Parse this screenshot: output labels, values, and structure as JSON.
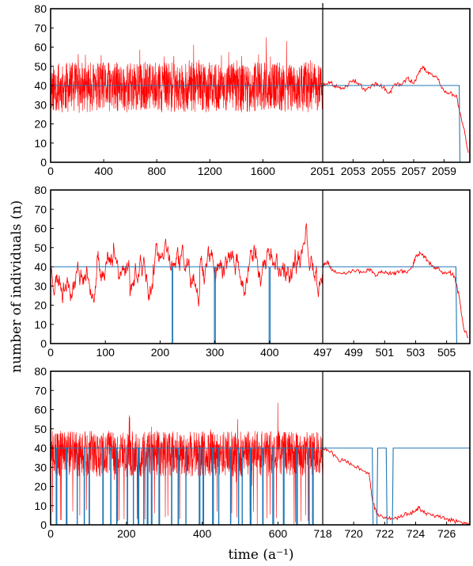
{
  "chart_data": {
    "type": "line",
    "ylabel": "number of individuals (n)",
    "xlabel": "time (a⁻¹)",
    "y_ticks": [
      0,
      10,
      20,
      30,
      40,
      50,
      60,
      70,
      80
    ],
    "ylim": [
      0,
      80
    ],
    "colors": {
      "trajectory": "#ff0000",
      "environment": "#1f77b4"
    },
    "panels": [
      {
        "left": {
          "xlim": [
            0,
            2051
          ],
          "ticks": [
            0,
            400,
            800,
            1200,
            1600
          ],
          "mean": 39,
          "amp": 13,
          "seed": 11,
          "dense": true,
          "env": [
            [
              0,
              40
            ],
            [
              2051,
              40
            ]
          ]
        },
        "right": {
          "xlim": [
            2051,
            2060.7
          ],
          "ticks": [
            2051,
            2053,
            2055,
            2057,
            2059
          ],
          "traj": [
            [
              2051,
              40
            ],
            [
              2051.4,
              42
            ],
            [
              2051.8,
              40
            ],
            [
              2052.2,
              38
            ],
            [
              2052.6,
              40
            ],
            [
              2053.0,
              43
            ],
            [
              2053.4,
              41
            ],
            [
              2053.8,
              37
            ],
            [
              2054.2,
              40
            ],
            [
              2054.6,
              41
            ],
            [
              2055.0,
              39
            ],
            [
              2055.4,
              36
            ],
            [
              2055.8,
              41
            ],
            [
              2056.2,
              40
            ],
            [
              2056.6,
              44
            ],
            [
              2057.0,
              41
            ],
            [
              2057.3,
              46
            ],
            [
              2057.6,
              50
            ],
            [
              2057.9,
              47
            ],
            [
              2058.2,
              46
            ],
            [
              2058.6,
              43
            ],
            [
              2059.0,
              37
            ],
            [
              2059.4,
              36
            ],
            [
              2059.8,
              35
            ],
            [
              2060.0,
              27
            ],
            [
              2060.3,
              18
            ],
            [
              2060.6,
              5
            ]
          ],
          "env": [
            [
              2051,
              40
            ],
            [
              2060.0,
              40
            ],
            [
              2060.05,
              0
            ],
            [
              2060.7,
              0
            ]
          ]
        }
      },
      {
        "left": {
          "xlim": [
            0,
            497
          ],
          "ticks": [
            0,
            100,
            200,
            300,
            400
          ],
          "mean": 39,
          "amp": 9,
          "seed": 23,
          "dense": false,
          "env": [
            [
              0,
              40
            ],
            [
              222,
              40
            ],
            [
              222,
              0
            ],
            [
              223,
              0
            ],
            [
              223,
              40
            ],
            [
              299,
              40
            ],
            [
              299,
              0
            ],
            [
              301,
              0
            ],
            [
              301,
              40
            ],
            [
              399,
              40
            ],
            [
              399,
              0
            ],
            [
              401,
              0
            ],
            [
              401,
              40
            ],
            [
              497,
              40
            ]
          ]
        },
        "right": {
          "xlim": [
            497,
            506.5
          ],
          "ticks": [
            497,
            499,
            501,
            503,
            505
          ],
          "traj": [
            [
              497,
              40
            ],
            [
              497.3,
              43
            ],
            [
              497.6,
              38
            ],
            [
              498.0,
              37
            ],
            [
              498.5,
              36
            ],
            [
              499.0,
              38
            ],
            [
              499.5,
              37
            ],
            [
              500.0,
              39
            ],
            [
              500.4,
              35
            ],
            [
              500.8,
              38
            ],
            [
              501.2,
              37
            ],
            [
              501.6,
              36
            ],
            [
              502.0,
              38
            ],
            [
              502.4,
              37
            ],
            [
              502.8,
              40
            ],
            [
              503.0,
              45
            ],
            [
              503.3,
              47
            ],
            [
              503.6,
              45
            ],
            [
              504.0,
              41
            ],
            [
              504.4,
              39
            ],
            [
              504.8,
              37
            ],
            [
              505.2,
              37
            ],
            [
              505.5,
              35
            ],
            [
              505.8,
              25
            ],
            [
              506.1,
              8
            ],
            [
              506.4,
              3
            ]
          ],
          "env": [
            [
              497,
              40
            ],
            [
              505.6,
              40
            ],
            [
              505.65,
              0
            ],
            [
              506.5,
              0
            ]
          ]
        }
      },
      {
        "left": {
          "xlim": [
            0,
            718
          ],
          "ticks": [
            0,
            200,
            400,
            600
          ],
          "mean": 37,
          "amp": 12,
          "seed": 37,
          "dense": true,
          "dips": true,
          "env": [
            [
              0,
              40
            ],
            [
              718,
              40
            ]
          ]
        },
        "right": {
          "xlim": [
            718,
            727.5
          ],
          "ticks": [
            718,
            720,
            722,
            724,
            726
          ],
          "traj": [
            [
              718,
              40
            ],
            [
              718.5,
              38
            ],
            [
              719,
              34
            ],
            [
              719.5,
              33
            ],
            [
              720,
              31
            ],
            [
              720.5,
              29
            ],
            [
              721,
              27
            ],
            [
              721.2,
              13
            ],
            [
              721.5,
              5
            ],
            [
              722,
              4
            ],
            [
              722.5,
              3
            ],
            [
              723,
              4
            ],
            [
              723.5,
              6
            ],
            [
              724,
              7
            ],
            [
              724.2,
              9
            ],
            [
              724.6,
              6
            ],
            [
              725,
              5
            ],
            [
              725.5,
              4
            ],
            [
              726,
              3
            ],
            [
              726.5,
              2
            ],
            [
              727,
              1
            ],
            [
              727.5,
              0
            ]
          ],
          "env": [
            [
              718,
              40
            ],
            [
              721.2,
              40
            ],
            [
              721.25,
              0
            ],
            [
              721.5,
              0
            ],
            [
              721.55,
              40
            ],
            [
              722.1,
              40
            ],
            [
              722.15,
              0
            ],
            [
              722.5,
              0
            ],
            [
              722.55,
              40
            ],
            [
              727.5,
              40
            ]
          ]
        }
      }
    ]
  }
}
